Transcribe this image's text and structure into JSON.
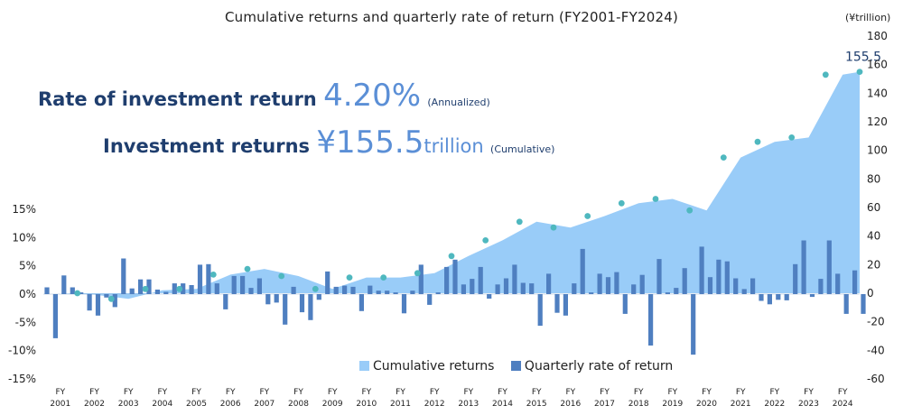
{
  "title": "Cumulative returns and quarterly rate of return (FY2001-FY2024)",
  "right_axis_unit": "(¥trillion)",
  "kpi": {
    "rate_label": "Rate of investment return",
    "rate_value": "4.20%",
    "rate_note": "(Annualized)",
    "returns_label": "Investment returns",
    "returns_value": "¥155.5",
    "returns_unit": "trillion",
    "returns_note": "(Cumulative)"
  },
  "colors": {
    "area": "#99ccf8",
    "bar": "#4f7fc0",
    "dot": "#4fb8bf",
    "label": "#1f3e6e"
  },
  "chart_data": {
    "type": "bar+area",
    "title": "Cumulative returns and quarterly rate of return (FY2001-FY2024)",
    "x_ticks": [
      {
        "top": "FY",
        "bottom": "2001"
      },
      {
        "top": "FY",
        "bottom": "2002"
      },
      {
        "top": "FY",
        "bottom": "2003"
      },
      {
        "top": "FY",
        "bottom": "2004"
      },
      {
        "top": "FY",
        "bottom": "2005"
      },
      {
        "top": "FY",
        "bottom": "2006"
      },
      {
        "top": "FY",
        "bottom": "2007"
      },
      {
        "top": "FY",
        "bottom": "2008"
      },
      {
        "top": "FY",
        "bottom": "2009"
      },
      {
        "top": "FY",
        "bottom": "2010"
      },
      {
        "top": "FY",
        "bottom": "2011"
      },
      {
        "top": "FY",
        "bottom": "2012"
      },
      {
        "top": "FY",
        "bottom": "2013"
      },
      {
        "top": "FY",
        "bottom": "2014"
      },
      {
        "top": "FY",
        "bottom": "2015"
      },
      {
        "top": "FY",
        "bottom": "2016"
      },
      {
        "top": "FY",
        "bottom": "2017"
      },
      {
        "top": "FY",
        "bottom": "2018"
      },
      {
        "top": "FY",
        "bottom": "2019"
      },
      {
        "top": "FY",
        "bottom": "2020"
      },
      {
        "top": "FY",
        "bottom": "2021"
      },
      {
        "top": "FY",
        "bottom": "2022"
      },
      {
        "top": "FY",
        "bottom": "2023"
      },
      {
        "top": "FY",
        "bottom": "2024"
      }
    ],
    "left_axis": {
      "ylim": [
        -15,
        15
      ],
      "ticks": [
        "15%",
        "10%",
        "5%",
        "0%",
        "-5%",
        "-10%",
        "-15%"
      ]
    },
    "right_axis": {
      "ylim": [
        -60,
        180
      ],
      "ticks": [
        "180",
        "160",
        "140",
        "120",
        "100",
        "80",
        "60",
        "40",
        "20",
        "0",
        "-20",
        "-40",
        "-60"
      ]
    },
    "series": [
      {
        "name": "Cumulative returns",
        "type": "area",
        "axis": "right",
        "x": [
          2001.0,
          2001.5,
          2002.5,
          2003.5,
          2004.5,
          2005.5,
          2006.5,
          2007.5,
          2008.5,
          2009.5,
          2010.5,
          2011.5,
          2012.5,
          2013.5,
          2014.5,
          2015.5,
          2016.5,
          2017.5,
          2018.5,
          2019.5,
          2020.5,
          2021.5,
          2022.5,
          2023.5,
          2024.5,
          2025.0
        ],
        "values": [
          0,
          0,
          -1,
          -4,
          2,
          3,
          13,
          17,
          12,
          3,
          11,
          11,
          14,
          26,
          37,
          50,
          46,
          54,
          63,
          66,
          58,
          95,
          106,
          109,
          153,
          155
        ]
      },
      {
        "name": "Cumulative returns (year-end points)",
        "type": "points",
        "axis": "right",
        "x": [
          2002.0,
          2003.0,
          2004.0,
          2005.0,
          2006.0,
          2007.0,
          2008.0,
          2009.0,
          2010.0,
          2011.0,
          2012.0,
          2013.0,
          2014.0,
          2015.0,
          2016.0,
          2017.0,
          2018.0,
          2019.0,
          2020.0,
          2021.0,
          2022.0,
          2023.0,
          2024.0,
          2025.0
        ],
        "values": [
          0,
          -4,
          3,
          3,
          13,
          17,
          12,
          3,
          11,
          11,
          14,
          26,
          37,
          50,
          46,
          54,
          63,
          66,
          58,
          95,
          106,
          109,
          153,
          155
        ],
        "label": {
          "index": 23,
          "text": "155.5"
        }
      },
      {
        "name": "Quarterly rate of return",
        "type": "bar",
        "axis": "left",
        "values": [
          1.2,
          -7.8,
          3.3,
          1.2,
          0.3,
          -2.9,
          -3.8,
          -0.6,
          -2.3,
          6.3,
          1.0,
          2.6,
          2.6,
          0.8,
          0.4,
          1.9,
          1.9,
          1.6,
          5.2,
          5.3,
          1.9,
          -2.7,
          3.2,
          3.2,
          1.1,
          2.8,
          -1.8,
          -1.5,
          -5.4,
          1.3,
          -3.2,
          -4.6,
          -1.0,
          4.0,
          1.3,
          1.5,
          1.3,
          -3.0,
          1.5,
          0.6,
          0.6,
          0.3,
          -3.4,
          0.6,
          5.2,
          -1.9,
          0.3,
          4.8,
          6.1,
          1.7,
          2.7,
          4.8,
          -0.8,
          1.7,
          2.8,
          5.2,
          2.0,
          1.9,
          -5.6,
          3.6,
          -3.3,
          -3.8,
          1.9,
          8.0,
          0.3,
          3.6,
          3.0,
          3.9,
          -3.5,
          1.7,
          3.4,
          -9.1,
          6.2,
          0.3,
          1.1,
          4.6,
          -10.7,
          8.4,
          3.0,
          6.1,
          5.8,
          2.8,
          0.9,
          2.8,
          -1.2,
          -1.8,
          -1.0,
          -1.1,
          5.3,
          9.5,
          -0.5,
          2.7,
          9.5,
          3.6,
          -3.5,
          4.2,
          -3.5
        ]
      }
    ],
    "legend": [
      "Cumulative returns",
      "Quarterly rate of return"
    ],
    "legend_position": "bottom-center",
    "grid": false
  }
}
